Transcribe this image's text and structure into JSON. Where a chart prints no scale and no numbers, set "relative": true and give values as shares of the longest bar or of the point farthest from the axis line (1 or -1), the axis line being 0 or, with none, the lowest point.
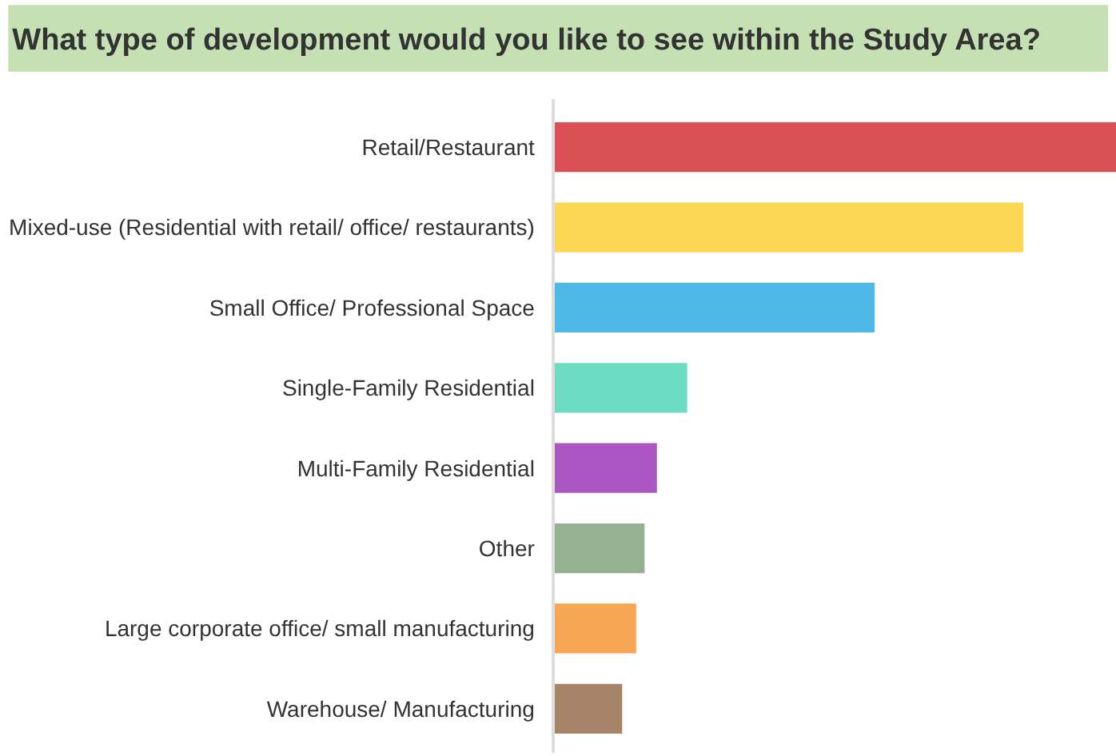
{
  "chart_data": {
    "type": "bar",
    "title": "What type of development would you like to see within the Study Area?",
    "orientation": "horizontal",
    "relative": true,
    "grid": false,
    "categories": [
      "Retail/Restaurant",
      "Mixed-use (Residential with retail/ office/ restaurants)",
      "Small Office/ Professional Space",
      "Single-Family Residential",
      "Multi-Family Residential",
      "Other",
      "Large corporate office/ small manufacturing",
      "Warehouse/ Manufacturing"
    ],
    "values": [
      1,
      0.835,
      0.57,
      0.236,
      0.182,
      0.16,
      0.145,
      0.12
    ],
    "colors": [
      "#d9474b",
      "#fbd44a",
      "#45b5e5",
      "#66d9c0",
      "#a64dbf",
      "#8fae8a",
      "#f5a04a",
      "#a07d60"
    ]
  }
}
